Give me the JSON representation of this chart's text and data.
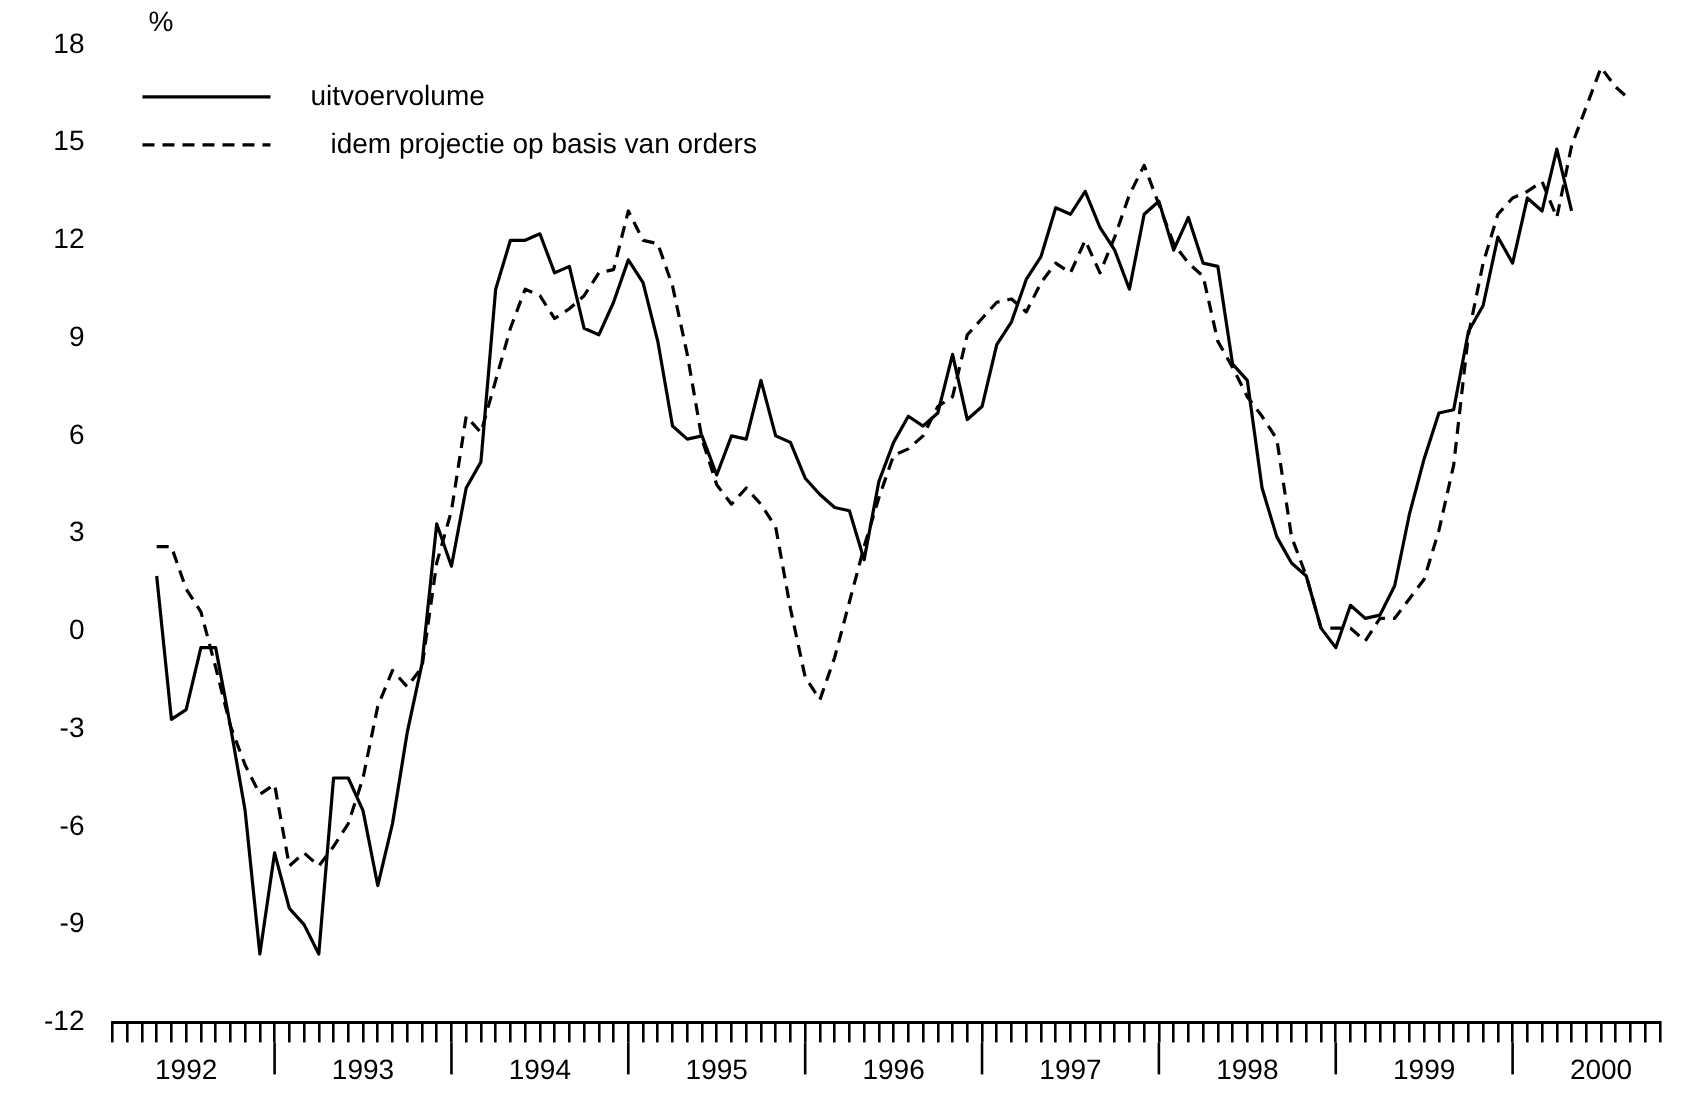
{
  "chart_data": {
    "type": "line",
    "ylabel": "%",
    "legend": "top left",
    "grid": false,
    "marker": "none",
    "x": [
      "1992-05",
      "1992-06",
      "1992-07",
      "1992-08",
      "1992-09",
      "1992-10",
      "1992-11",
      "1992-12",
      "1993-01",
      "1993-02",
      "1993-03",
      "1993-04",
      "1993-05",
      "1993-06",
      "1993-07",
      "1993-08",
      "1993-09",
      "1993-10",
      "1993-11",
      "1993-12",
      "1994-01",
      "1994-02",
      "1994-03",
      "1994-04",
      "1994-05",
      "1994-06",
      "1994-07",
      "1994-08",
      "1994-09",
      "1994-10",
      "1994-11",
      "1994-12",
      "1995-01",
      "1995-02",
      "1995-03",
      "1995-04",
      "1995-05",
      "1995-06",
      "1995-07",
      "1995-08",
      "1995-09",
      "1995-10",
      "1995-11",
      "1995-12",
      "1996-01",
      "1996-02",
      "1996-03",
      "1996-04",
      "1996-05",
      "1996-06",
      "1996-07",
      "1996-08",
      "1996-09",
      "1996-10",
      "1996-11",
      "1996-12",
      "1997-01",
      "1997-02",
      "1997-03",
      "1997-04",
      "1997-05",
      "1997-06",
      "1997-07",
      "1997-08",
      "1997-09",
      "1997-10",
      "1997-11",
      "1997-12",
      "1998-01",
      "1998-02",
      "1998-03",
      "1998-04",
      "1998-05",
      "1998-06",
      "1998-07",
      "1998-08",
      "1998-09",
      "1998-10",
      "1998-11",
      "1998-12",
      "1999-01",
      "1999-02",
      "1999-03",
      "1999-04",
      "1999-05",
      "1999-06",
      "1999-07",
      "1999-08",
      "1999-09",
      "1999-10",
      "1999-11",
      "1999-12",
      "2000-01",
      "2000-02",
      "2000-03",
      "2000-04",
      "2000-05",
      "2000-06",
      "2000-07",
      "2000-08",
      "2000-09"
    ],
    "xlim": [
      "1992-02",
      "2000-11"
    ],
    "xticks": [
      {
        "value": "1992-02",
        "label": null
      },
      {
        "value": "1992-03",
        "label": null
      },
      {
        "value": "1992-04",
        "label": null
      },
      {
        "value": "1992-05",
        "label": null
      },
      {
        "value": "1992-06",
        "label": null
      },
      {
        "value": "1992-07",
        "label": "1992"
      },
      {
        "value": "1992-08",
        "label": null
      },
      {
        "value": "1992-09",
        "label": null
      },
      {
        "value": "1992-10",
        "label": null
      },
      {
        "value": "1992-11",
        "label": null
      },
      {
        "value": "1992-12",
        "label": null
      },
      {
        "value": "1993-01",
        "label": null
      },
      {
        "value": "1993-02",
        "label": null
      },
      {
        "value": "1993-03",
        "label": null
      },
      {
        "value": "1993-04",
        "label": null
      },
      {
        "value": "1993-05",
        "label": null
      },
      {
        "value": "1993-06",
        "label": null
      },
      {
        "value": "1993-07",
        "label": "1993"
      },
      {
        "value": "1993-08",
        "label": null
      },
      {
        "value": "1993-09",
        "label": null
      },
      {
        "value": "1993-10",
        "label": null
      },
      {
        "value": "1993-11",
        "label": null
      },
      {
        "value": "1993-12",
        "label": null
      },
      {
        "value": "1994-01",
        "label": null
      },
      {
        "value": "1994-02",
        "label": null
      },
      {
        "value": "1994-03",
        "label": null
      },
      {
        "value": "1994-04",
        "label": null
      },
      {
        "value": "1994-05",
        "label": null
      },
      {
        "value": "1994-06",
        "label": null
      },
      {
        "value": "1994-07",
        "label": "1994"
      },
      {
        "value": "1994-08",
        "label": null
      },
      {
        "value": "1994-09",
        "label": null
      },
      {
        "value": "1994-10",
        "label": null
      },
      {
        "value": "1994-11",
        "label": null
      },
      {
        "value": "1994-12",
        "label": null
      },
      {
        "value": "1995-01",
        "label": null
      },
      {
        "value": "1995-02",
        "label": null
      },
      {
        "value": "1995-03",
        "label": null
      },
      {
        "value": "1995-04",
        "label": null
      },
      {
        "value": "1995-05",
        "label": null
      },
      {
        "value": "1995-06",
        "label": null
      },
      {
        "value": "1995-07",
        "label": "1995"
      },
      {
        "value": "1995-08",
        "label": null
      },
      {
        "value": "1995-09",
        "label": null
      },
      {
        "value": "1995-10",
        "label": null
      },
      {
        "value": "1995-11",
        "label": null
      },
      {
        "value": "1995-12",
        "label": null
      },
      {
        "value": "1996-01",
        "label": null
      },
      {
        "value": "1996-02",
        "label": null
      },
      {
        "value": "1996-03",
        "label": null
      },
      {
        "value": "1996-04",
        "label": null
      },
      {
        "value": "1996-05",
        "label": null
      },
      {
        "value": "1996-06",
        "label": null
      },
      {
        "value": "1996-07",
        "label": "1996"
      },
      {
        "value": "1996-08",
        "label": null
      },
      {
        "value": "1996-09",
        "label": null
      },
      {
        "value": "1996-10",
        "label": null
      },
      {
        "value": "1996-11",
        "label": null
      },
      {
        "value": "1996-12",
        "label": null
      },
      {
        "value": "1997-01",
        "label": null
      },
      {
        "value": "1997-02",
        "label": null
      },
      {
        "value": "1997-03",
        "label": null
      },
      {
        "value": "1997-04",
        "label": null
      },
      {
        "value": "1997-05",
        "label": null
      },
      {
        "value": "1997-06",
        "label": null
      },
      {
        "value": "1997-07",
        "label": "1997"
      },
      {
        "value": "1997-08",
        "label": null
      },
      {
        "value": "1997-09",
        "label": null
      },
      {
        "value": "1997-10",
        "label": null
      },
      {
        "value": "1997-11",
        "label": null
      },
      {
        "value": "1997-12",
        "label": null
      },
      {
        "value": "1998-01",
        "label": null
      },
      {
        "value": "1998-02",
        "label": null
      },
      {
        "value": "1998-03",
        "label": null
      },
      {
        "value": "1998-04",
        "label": null
      },
      {
        "value": "1998-05",
        "label": null
      },
      {
        "value": "1998-06",
        "label": null
      },
      {
        "value": "1998-07",
        "label": "1998"
      },
      {
        "value": "1998-08",
        "label": null
      },
      {
        "value": "1998-09",
        "label": null
      },
      {
        "value": "1998-10",
        "label": null
      },
      {
        "value": "1998-11",
        "label": null
      },
      {
        "value": "1998-12",
        "label": null
      },
      {
        "value": "1999-01",
        "label": null
      },
      {
        "value": "1999-02",
        "label": null
      },
      {
        "value": "1999-03",
        "label": null
      },
      {
        "value": "1999-04",
        "label": null
      },
      {
        "value": "1999-05",
        "label": null
      },
      {
        "value": "1999-06",
        "label": null
      },
      {
        "value": "1999-07",
        "label": "1999"
      },
      {
        "value": "1999-08",
        "label": null
      },
      {
        "value": "1999-09",
        "label": null
      },
      {
        "value": "1999-10",
        "label": null
      },
      {
        "value": "1999-11",
        "label": null
      },
      {
        "value": "1999-12",
        "label": null
      },
      {
        "value": "2000-01",
        "label": null
      },
      {
        "value": "2000-02",
        "label": null
      },
      {
        "value": "2000-03",
        "label": null
      },
      {
        "value": "2000-04",
        "label": null
      },
      {
        "value": "2000-05",
        "label": null
      },
      {
        "value": "2000-06",
        "label": null
      },
      {
        "value": "2000-07",
        "label": "2000"
      },
      {
        "value": "2000-08",
        "label": null
      },
      {
        "value": "2000-09",
        "label": null
      },
      {
        "value": "2000-10",
        "label": null
      },
      {
        "value": "2000-11",
        "label": null
      }
    ],
    "ylim": [
      -12,
      18
    ],
    "yticks": [
      -12,
      -9,
      -6,
      -3,
      0,
      3,
      6,
      9,
      12,
      15,
      18
    ],
    "series": [
      {
        "name": "uitvoervolume",
        "color": "#000000",
        "line_style": "solid",
        "values": [
          1.7,
          -2.7,
          -2.4,
          -0.5,
          -0.5,
          -2.9,
          -5.5,
          -9.9,
          -6.8,
          -8.5,
          -9.0,
          -9.9,
          -4.5,
          -4.5,
          -5.5,
          -7.8,
          -5.9,
          -3.1,
          -1.0,
          3.3,
          2.0,
          4.4,
          5.2,
          10.5,
          12.0,
          12.0,
          12.2,
          11.0,
          11.2,
          9.3,
          9.1,
          10.1,
          11.4,
          10.7,
          8.9,
          6.3,
          5.9,
          6.0,
          4.8,
          6.0,
          5.9,
          7.7,
          6.0,
          5.8,
          4.7,
          4.2,
          3.8,
          3.7,
          2.2,
          4.6,
          5.8,
          6.6,
          6.3,
          6.7,
          8.5,
          6.5,
          6.9,
          8.8,
          9.5,
          10.8,
          11.5,
          13.0,
          12.8,
          13.5,
          12.4,
          11.7,
          10.5,
          12.8,
          13.2,
          11.7,
          12.7,
          11.3,
          11.2,
          8.2,
          7.7,
          4.4,
          2.9,
          2.1,
          1.7,
          0.1,
          -0.5,
          0.8,
          0.4,
          0.5,
          1.4,
          3.6,
          5.3,
          6.7,
          6.8,
          9.2,
          10.0,
          12.1,
          11.3,
          13.3,
          12.9,
          14.8,
          12.9,
          null,
          null,
          null,
          null
        ]
      },
      {
        "name": "idem projectie op basis van orders",
        "color": "#000000",
        "line_style": "dashed",
        "values": [
          2.6,
          2.6,
          1.3,
          0.6,
          -1.1,
          -2.9,
          -4.1,
          -5.0,
          -4.7,
          -7.2,
          -6.8,
          -7.2,
          -6.6,
          -5.9,
          -4.5,
          -2.3,
          -1.2,
          -1.7,
          -1.1,
          2.1,
          3.7,
          6.6,
          6.1,
          7.7,
          9.3,
          10.5,
          10.3,
          9.6,
          9.9,
          10.3,
          11.0,
          11.1,
          12.9,
          12.0,
          11.9,
          10.6,
          8.5,
          5.9,
          4.5,
          3.9,
          4.4,
          3.9,
          3.2,
          0.7,
          -1.4,
          -2.1,
          -0.8,
          0.9,
          2.6,
          4.1,
          5.4,
          5.6,
          6.0,
          6.9,
          7.2,
          9.1,
          9.6,
          10.1,
          10.2,
          9.8,
          10.7,
          11.3,
          11.0,
          12.0,
          11.0,
          12.1,
          13.4,
          14.3,
          13.1,
          11.9,
          11.3,
          10.9,
          8.9,
          8.1,
          7.2,
          6.6,
          5.9,
          2.9,
          1.7,
          0.1,
          0.1,
          0.1,
          -0.3,
          0.4,
          0.4,
          1.0,
          1.6,
          3.1,
          5.1,
          9.1,
          11.3,
          12.8,
          13.3,
          13.5,
          13.8,
          12.7,
          14.9,
          16.1,
          17.3,
          16.7,
          16.3
        ]
      }
    ]
  }
}
